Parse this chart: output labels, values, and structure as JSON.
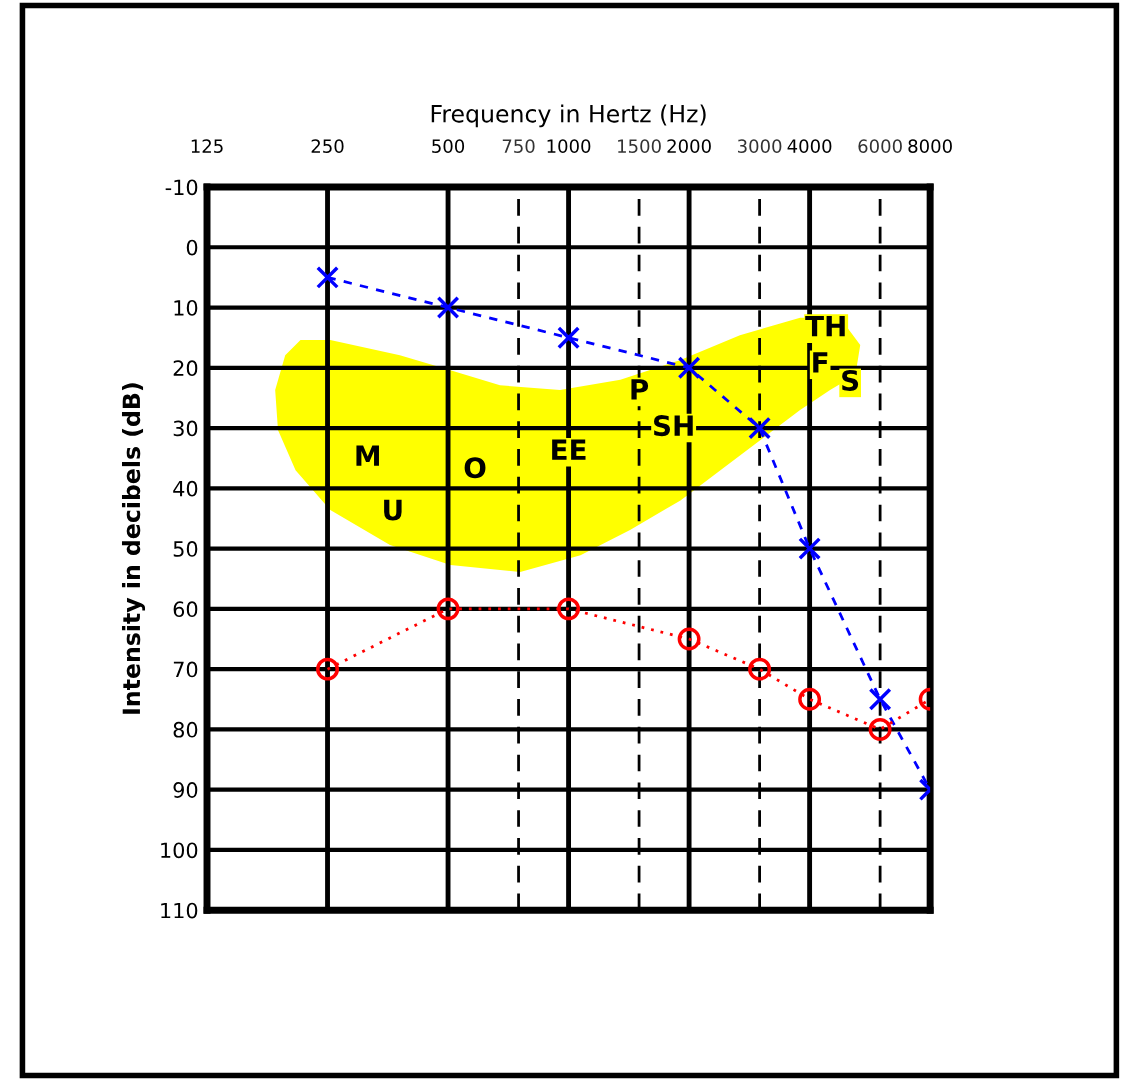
{
  "chart_data": {
    "type": "line",
    "xlabel": "Frequency in Hertz (Hz)",
    "ylabel": "Intensity in decibels (dB)",
    "x": [
      250,
      500,
      1000,
      2000,
      3000,
      4000,
      6000,
      8000
    ],
    "series": [
      {
        "color": "#0000ff",
        "marker": "cross",
        "line_style": "dashed",
        "values": [
          5,
          10,
          15,
          20,
          30,
          50,
          75,
          90
        ]
      },
      {
        "color": "#ff0000",
        "marker": "circle",
        "line_style": "dotted",
        "values": [
          70,
          60,
          60,
          65,
          70,
          75,
          80,
          75
        ]
      }
    ],
    "log": "x",
    "xlim": [
      125,
      8000
    ],
    "xticks": [
      125,
      250,
      500,
      750,
      1000,
      1500,
      2000,
      3000,
      4000,
      6000,
      8000
    ],
    "ylim": [
      110,
      -10
    ],
    "yticks": [
      -10,
      0,
      10,
      20,
      30,
      40,
      50,
      60,
      70,
      80,
      90,
      100,
      110
    ],
    "grid": true,
    "annotations": [
      "M",
      "U",
      "O",
      "EE",
      "P",
      "SH",
      "TH",
      "F",
      "S"
    ]
  }
}
